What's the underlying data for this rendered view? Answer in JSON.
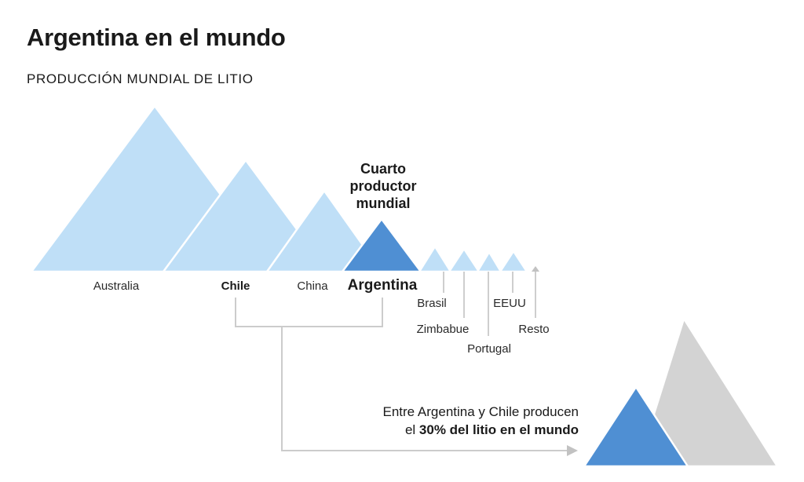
{
  "title": "Argentina en el mundo",
  "subtitle": "PRODUCCIÓN MUNDIAL DE LITIO",
  "chart_data": {
    "type": "area",
    "title": "Argentina en el mundo",
    "subtitle": "PRODUCCIÓN MUNDIAL DE LITIO",
    "categories": [
      "Australia",
      "Chile",
      "China",
      "Argentina",
      "Brasil",
      "Zimbabue",
      "Portugal",
      "EEUU",
      "Resto"
    ],
    "highlight": "Argentina",
    "annotation": [
      "Cuarto",
      "productor",
      "mundial"
    ],
    "colors": {
      "base": "#bfdff7",
      "highlight": "#4f8fd3",
      "rest": "#d3d3d3",
      "line": "#cccccc",
      "arrow": "#c2c2c2"
    },
    "combined": {
      "text_prefix": "Entre Argentina y Chile producen",
      "text_line2_plain": "el",
      "text_line2_bold": "30% del litio en el mundo",
      "value_percent": 30,
      "labels": [
        "Chile",
        "Argentina"
      ]
    }
  }
}
